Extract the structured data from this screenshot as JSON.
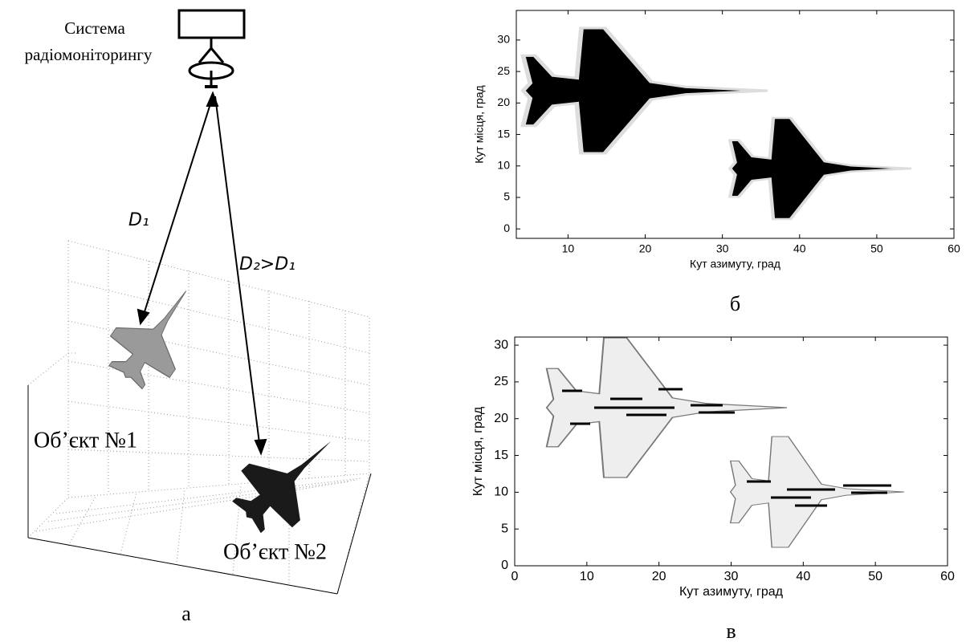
{
  "panel_a": {
    "station_label": [
      "Система",
      "радіомоніторингу"
    ],
    "d1_label": "D₁",
    "d2_label": "D₂>D₁",
    "object1": "Об’єкт №1",
    "object2": "Об’єкт №2",
    "caption": "а"
  },
  "panel_b": {
    "xlabel": "Кут азимуту, град",
    "ylabel": "Кут місця, град",
    "xlim": [
      3.3,
      60
    ],
    "ylim": [
      -1.5,
      34.7
    ],
    "xticks": [
      10,
      20,
      30,
      40,
      50,
      60
    ],
    "yticks": [
      0,
      5,
      10,
      15,
      20,
      25,
      30
    ],
    "caption": "б"
  },
  "panel_c": {
    "xlabel": "Кут азимуту, град",
    "ylabel": "Кут місця, град",
    "xlim": [
      0,
      60
    ],
    "ylim": [
      0,
      31.1
    ],
    "xticks": [
      0,
      10,
      20,
      30,
      40,
      50,
      60
    ],
    "yticks": [
      0,
      5,
      10,
      15,
      20,
      25,
      30
    ],
    "caption": "в"
  }
}
